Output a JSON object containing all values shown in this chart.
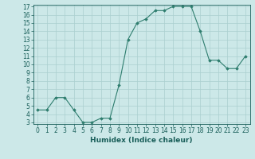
{
  "x": [
    0,
    1,
    2,
    3,
    4,
    5,
    6,
    7,
    8,
    9,
    10,
    11,
    12,
    13,
    14,
    15,
    16,
    17,
    18,
    19,
    20,
    21,
    22,
    23
  ],
  "y": [
    4.5,
    4.5,
    6.0,
    6.0,
    4.5,
    3.0,
    3.0,
    3.5,
    3.5,
    7.5,
    13.0,
    15.0,
    15.5,
    16.5,
    16.5,
    17.0,
    17.0,
    17.0,
    14.0,
    10.5,
    10.5,
    9.5,
    9.5,
    11.0
  ],
  "line_color": "#2e7d6e",
  "marker": "D",
  "marker_size": 1.8,
  "bg_color": "#cce8e8",
  "grid_color": "#aacfcf",
  "xlabel": "Humidex (Indice chaleur)",
  "ylim": [
    3,
    17
  ],
  "xlim": [
    -0.5,
    23.5
  ],
  "yticks": [
    3,
    4,
    5,
    6,
    7,
    8,
    9,
    10,
    11,
    12,
    13,
    14,
    15,
    16,
    17
  ],
  "xticks": [
    0,
    1,
    2,
    3,
    4,
    5,
    6,
    7,
    8,
    9,
    10,
    11,
    12,
    13,
    14,
    15,
    16,
    17,
    18,
    19,
    20,
    21,
    22,
    23
  ],
  "tick_color": "#1a5f5a",
  "label_fontsize": 5.5,
  "axis_fontsize": 6.5,
  "line_width": 0.8
}
